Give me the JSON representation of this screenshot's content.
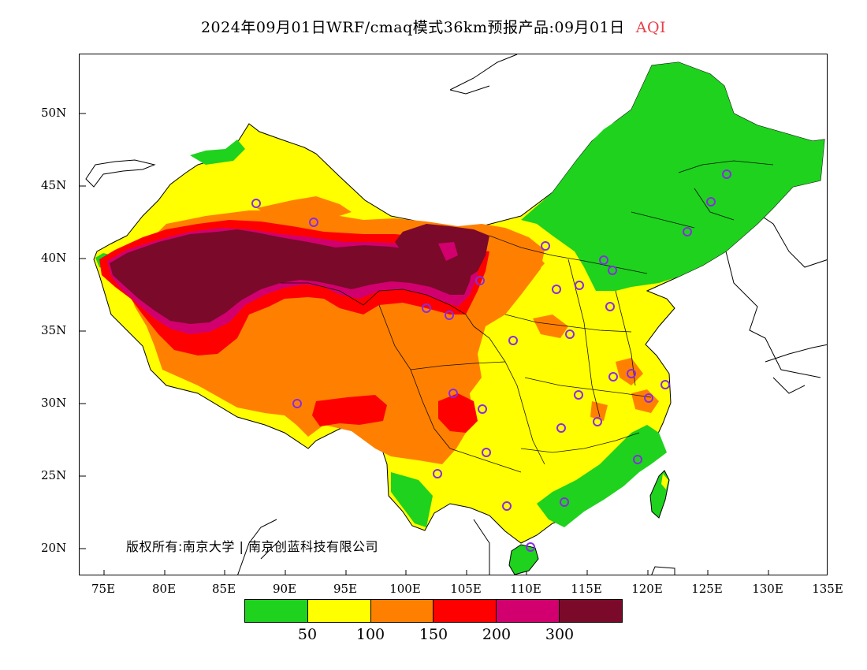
{
  "title": {
    "main": "2024年09月01日WRF/cmaq模式36km预报产品:09月01日",
    "variable": "AQI",
    "variable_color": "#e8404a"
  },
  "axes": {
    "latitude_ticks": [
      "50N",
      "45N",
      "40N",
      "35N",
      "30N",
      "25N",
      "20N"
    ],
    "longitude_ticks": [
      "75E",
      "80E",
      "85E",
      "90E",
      "95E",
      "100E",
      "105E",
      "110E",
      "115E",
      "120E",
      "125E",
      "130E",
      "135E"
    ],
    "lon_range": [
      73,
      135
    ],
    "lat_range": [
      18,
      54
    ]
  },
  "copyright": "版权所有:南京大学 | 南京创蓝科技有限公司",
  "legend": {
    "colors": [
      "#1ed21e",
      "#ffff00",
      "#ff8000",
      "#ff0000",
      "#d2006e",
      "#7b0a2a"
    ],
    "labels": [
      "50",
      "100",
      "150",
      "200",
      "300"
    ]
  },
  "colors": {
    "good": "#1ed21e",
    "moderate": "#ffff00",
    "usg": "#ff8000",
    "unhealthy": "#ff0000",
    "very_unhealthy": "#d2006e",
    "hazardous": "#7b0a2a",
    "station_marker": "#8a2be2"
  }
}
